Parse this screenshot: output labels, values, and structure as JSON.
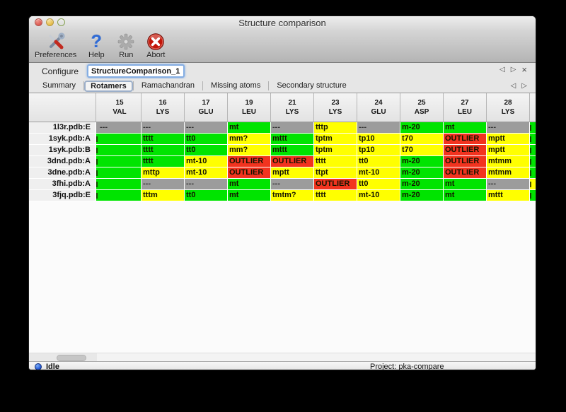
{
  "window": {
    "title": "Structure comparison"
  },
  "toolbar": {
    "items": [
      {
        "label": "Preferences",
        "icon": "preferences-tools-icon"
      },
      {
        "label": "Help",
        "icon": "help-question-icon"
      },
      {
        "label": "Run",
        "icon": "run-gear-icon"
      },
      {
        "label": "Abort",
        "icon": "abort-x-icon"
      }
    ]
  },
  "configure": {
    "label": "Configure",
    "value": "StructureComparison_1"
  },
  "nav_icons": {
    "prev": "◁",
    "next": "▷",
    "close": "×"
  },
  "tabs": {
    "items": [
      "Summary",
      "Rotamers",
      "Ramachandran",
      "Missing atoms",
      "Secondary structure"
    ],
    "selected": "Rotamers"
  },
  "table": {
    "columns": [
      {
        "num": "15",
        "res": "VAL"
      },
      {
        "num": "16",
        "res": "LYS"
      },
      {
        "num": "17",
        "res": "GLU"
      },
      {
        "num": "19",
        "res": "LEU"
      },
      {
        "num": "21",
        "res": "LYS"
      },
      {
        "num": "23",
        "res": "LYS"
      },
      {
        "num": "24",
        "res": "GLU"
      },
      {
        "num": "25",
        "res": "ASP"
      },
      {
        "num": "27",
        "res": "LEU"
      },
      {
        "num": "28",
        "res": "LYS"
      }
    ],
    "rows": [
      {
        "name": "1l3r.pdb:E",
        "left_clip": "gray",
        "right_clip": "green",
        "cells": [
          {
            "v": "---",
            "c": "gray"
          },
          {
            "v": "---",
            "c": "gray"
          },
          {
            "v": "---",
            "c": "gray"
          },
          {
            "v": "mt",
            "c": "green"
          },
          {
            "v": "---",
            "c": "gray"
          },
          {
            "v": "tttp",
            "c": "yellow"
          },
          {
            "v": "---",
            "c": "gray"
          },
          {
            "v": "m-20",
            "c": "green"
          },
          {
            "v": "mt",
            "c": "green"
          },
          {
            "v": "---",
            "c": "gray"
          }
        ]
      },
      {
        "name": "1syk.pdb:A",
        "left_clip": "green",
        "right_clip": "green",
        "cells": [
          {
            "v": "",
            "c": "green"
          },
          {
            "v": "tttt",
            "c": "green"
          },
          {
            "v": "tt0",
            "c": "green"
          },
          {
            "v": "mm?",
            "c": "yellow"
          },
          {
            "v": "mttt",
            "c": "green"
          },
          {
            "v": "tptm",
            "c": "yellow"
          },
          {
            "v": "tp10",
            "c": "yellow"
          },
          {
            "v": "t70",
            "c": "yellow"
          },
          {
            "v": "OUTLIER",
            "c": "red"
          },
          {
            "v": "mptt",
            "c": "yellow"
          }
        ]
      },
      {
        "name": "1syk.pdb:B",
        "left_clip": "green",
        "right_clip": "green",
        "cells": [
          {
            "v": "",
            "c": "green"
          },
          {
            "v": "tttt",
            "c": "green"
          },
          {
            "v": "tt0",
            "c": "green"
          },
          {
            "v": "mm?",
            "c": "yellow"
          },
          {
            "v": "mttt",
            "c": "green"
          },
          {
            "v": "tptm",
            "c": "yellow"
          },
          {
            "v": "tp10",
            "c": "yellow"
          },
          {
            "v": "t70",
            "c": "yellow"
          },
          {
            "v": "OUTLIER",
            "c": "red"
          },
          {
            "v": "mptt",
            "c": "yellow"
          }
        ]
      },
      {
        "name": "3dnd.pdb:A",
        "left_clip": "green",
        "right_clip": "green",
        "cells": [
          {
            "v": "",
            "c": "green"
          },
          {
            "v": "tttt",
            "c": "green"
          },
          {
            "v": "mt-10",
            "c": "yellow"
          },
          {
            "v": "OUTLIER",
            "c": "red"
          },
          {
            "v": "OUTLIER",
            "c": "red"
          },
          {
            "v": "tttt",
            "c": "yellow"
          },
          {
            "v": "tt0",
            "c": "yellow"
          },
          {
            "v": "m-20",
            "c": "green"
          },
          {
            "v": "OUTLIER",
            "c": "red"
          },
          {
            "v": "mtmm",
            "c": "yellow"
          }
        ]
      },
      {
        "name": "3dne.pdb:A",
        "left_clip": "green",
        "right_clip": "green",
        "cells": [
          {
            "v": "",
            "c": "green"
          },
          {
            "v": "mttp",
            "c": "yellow"
          },
          {
            "v": "mt-10",
            "c": "yellow"
          },
          {
            "v": "OUTLIER",
            "c": "red"
          },
          {
            "v": "mptt",
            "c": "yellow"
          },
          {
            "v": "ttpt",
            "c": "yellow"
          },
          {
            "v": "mt-10",
            "c": "yellow"
          },
          {
            "v": "m-20",
            "c": "green"
          },
          {
            "v": "OUTLIER",
            "c": "red"
          },
          {
            "v": "mtmm",
            "c": "yellow"
          }
        ]
      },
      {
        "name": "3fhi.pdb:A",
        "left_clip": "green",
        "right_clip": "yellow",
        "cells": [
          {
            "v": "",
            "c": "green"
          },
          {
            "v": "---",
            "c": "gray"
          },
          {
            "v": "---",
            "c": "gray"
          },
          {
            "v": "mt",
            "c": "green"
          },
          {
            "v": "---",
            "c": "gray"
          },
          {
            "v": "OUTLIER",
            "c": "red"
          },
          {
            "v": "tt0",
            "c": "yellow"
          },
          {
            "v": "m-20",
            "c": "green"
          },
          {
            "v": "mt",
            "c": "green"
          },
          {
            "v": "---",
            "c": "gray"
          }
        ]
      },
      {
        "name": "3fjq.pdb:E",
        "left_clip": "green",
        "right_clip": "green",
        "cells": [
          {
            "v": "",
            "c": "green"
          },
          {
            "v": "tttm",
            "c": "yellow"
          },
          {
            "v": "tt0",
            "c": "green"
          },
          {
            "v": "mt",
            "c": "green"
          },
          {
            "v": "tmtm?",
            "c": "yellow"
          },
          {
            "v": "tttt",
            "c": "yellow"
          },
          {
            "v": "mt-10",
            "c": "yellow"
          },
          {
            "v": "m-20",
            "c": "green"
          },
          {
            "v": "mt",
            "c": "green"
          },
          {
            "v": "mttt",
            "c": "yellow"
          }
        ]
      }
    ]
  },
  "status": {
    "state": "Idle",
    "project_label": "Project: pka-compare"
  },
  "colors": {
    "green": "#00e400",
    "yellow": "#ffff00",
    "red": "#f2331f",
    "gray": "#9c9c9c",
    "focus_ring": "#85aee3"
  }
}
